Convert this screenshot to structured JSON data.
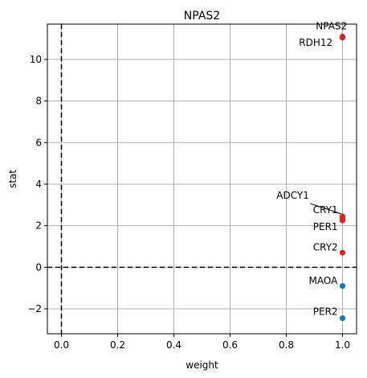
{
  "chart_data": {
    "type": "scatter",
    "title": "NPAS2",
    "xlabel": "weight",
    "ylabel": "stat",
    "xlim": [
      -0.05,
      1.05
    ],
    "ylim": [
      -3.2,
      11.7
    ],
    "x_ticks": [
      0.0,
      0.2,
      0.4,
      0.6,
      0.8,
      1.0
    ],
    "x_tick_labels": [
      "0.0",
      "0.2",
      "0.4",
      "0.6",
      "0.8",
      "1.0"
    ],
    "y_ticks": [
      -2,
      0,
      2,
      4,
      6,
      8,
      10
    ],
    "y_tick_labels": [
      "−2",
      "0",
      "2",
      "4",
      "6",
      "8",
      "10"
    ],
    "grid": true,
    "reference_lines": {
      "x": 0,
      "y": 0
    },
    "colors": {
      "positive": "#d62728",
      "negative": "#1f77b4",
      "grid": "#b0b0b0",
      "reference": "#000000"
    },
    "points": [
      {
        "name": "NPAS2",
        "x": 1.0,
        "y": 11.1,
        "color": "#d62728"
      },
      {
        "name": "RDH12",
        "x": 1.0,
        "y": 11.05,
        "color": "#d62728"
      },
      {
        "name": "ADCY1",
        "x": 1.0,
        "y": 2.45,
        "color": "#d62728"
      },
      {
        "name": "CRY1",
        "x": 1.0,
        "y": 2.35,
        "color": "#d62728"
      },
      {
        "name": "PER1",
        "x": 1.0,
        "y": 2.25,
        "color": "#d62728"
      },
      {
        "name": "CRY2",
        "x": 1.0,
        "y": 0.7,
        "color": "#d62728"
      },
      {
        "name": "MAOA",
        "x": 1.0,
        "y": -0.9,
        "color": "#1f77b4"
      },
      {
        "name": "PER2",
        "x": 1.0,
        "y": -2.45,
        "color": "#1f77b4"
      }
    ],
    "annotations": [
      {
        "text": "NPAS2",
        "x": 0.905,
        "y": 11.45
      },
      {
        "text": "RDH12",
        "x": 0.845,
        "y": 10.65
      },
      {
        "text": "ADCY1",
        "x": 0.765,
        "y": 3.3,
        "arrow_to": {
          "x": 1.0,
          "y": 2.5
        }
      },
      {
        "text": "CRY1",
        "x": 0.895,
        "y": 2.6
      },
      {
        "text": "PER1",
        "x": 0.895,
        "y": 1.8
      },
      {
        "text": "CRY2",
        "x": 0.895,
        "y": 0.8
      },
      {
        "text": "MAOA",
        "x": 0.88,
        "y": -0.8
      },
      {
        "text": "PER2",
        "x": 0.895,
        "y": -2.3
      }
    ]
  }
}
